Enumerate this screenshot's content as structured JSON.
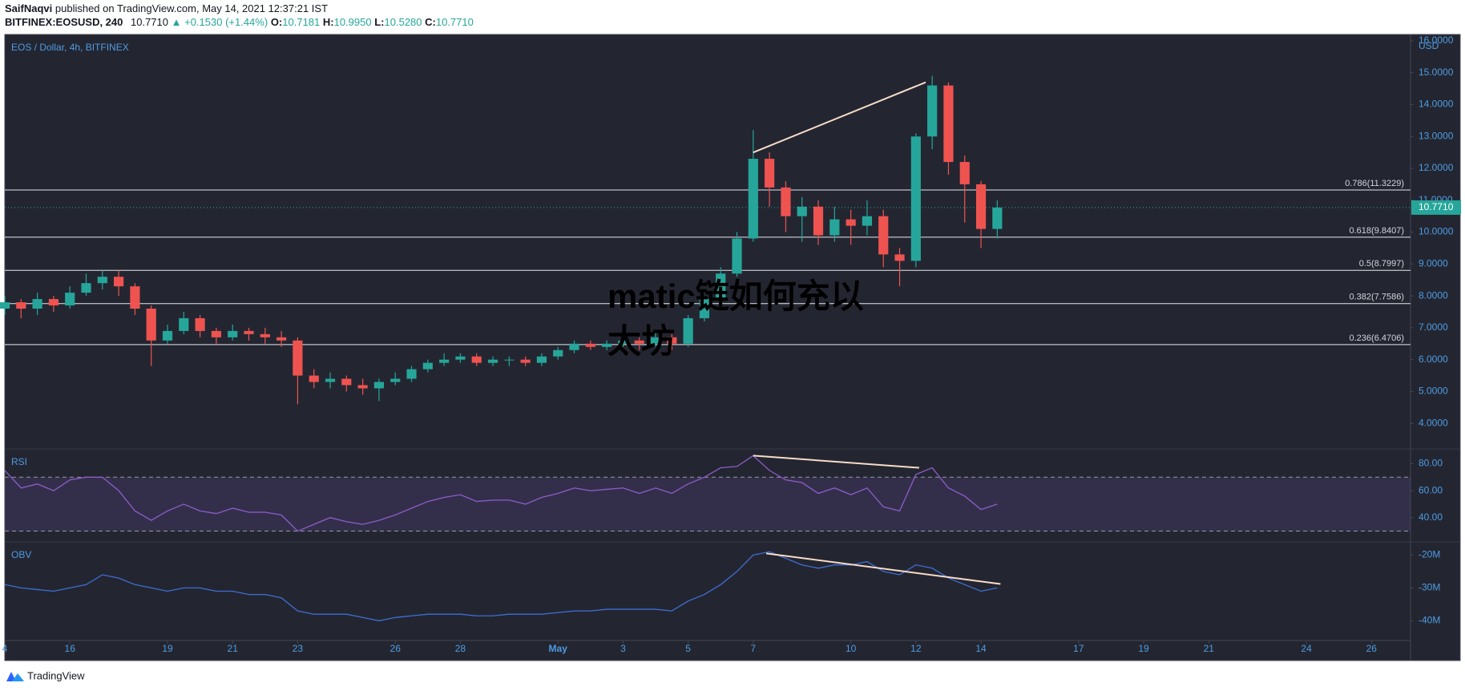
{
  "header": {
    "author": "SaifNaqvi",
    "published": "published on TradingView.com, May 14, 2021 12:37:21 IST",
    "symbol": "BITFINEX:EOSUSD, 240",
    "last": "10.7710",
    "change": "▲ +0.1530 (+1.44%)",
    "ohlc": [
      {
        "label": "O:",
        "value": "10.7181"
      },
      {
        "label": "H:",
        "value": "10.9950"
      },
      {
        "label": "L:",
        "value": "10.5280"
      },
      {
        "label": "C:",
        "value": "10.7710"
      }
    ]
  },
  "watermark": [
    "matic链如何充以",
    "太坊"
  ],
  "footer": "TradingView",
  "chart_data": [
    {
      "type": "candlestick",
      "title": "EOS / Dollar, 4h, BITFINEX",
      "currency": "USD",
      "up_color": "#26a69a",
      "down_color": "#ef5350",
      "x": [
        0,
        0.5,
        1,
        1.5,
        2,
        2.5,
        3,
        3.5,
        4,
        4.5,
        5,
        5.5,
        6,
        6.5,
        7,
        7.5,
        8,
        8.5,
        9,
        9.5,
        10,
        10.5,
        11,
        11.5,
        12,
        12.5,
        13,
        13.5,
        14,
        14.5,
        15,
        15.5,
        16,
        16.5,
        17,
        17.5,
        18,
        18.5,
        19,
        19.5,
        20,
        20.5,
        21,
        21.5,
        22,
        22.5,
        23,
        23.5,
        24,
        24.5,
        25,
        25.5,
        26,
        26.5,
        27,
        27.5,
        28,
        28.5,
        29,
        29.5,
        30,
        30.5
      ],
      "open": [
        7.6,
        7.8,
        7.6,
        7.9,
        7.7,
        8.1,
        8.4,
        8.6,
        8.3,
        7.6,
        6.6,
        6.9,
        7.3,
        6.9,
        6.7,
        6.9,
        6.8,
        6.7,
        6.6,
        5.5,
        5.3,
        5.4,
        5.2,
        5.1,
        5.3,
        5.4,
        5.7,
        5.9,
        6.0,
        6.1,
        5.9,
        6.0,
        6.0,
        5.9,
        6.1,
        6.3,
        6.5,
        6.4,
        6.5,
        6.6,
        6.5,
        6.7,
        6.5,
        7.3,
        7.9,
        8.7,
        9.8,
        12.3,
        11.4,
        10.5,
        10.8,
        9.9,
        10.4,
        10.2,
        10.5,
        9.3,
        9.1,
        13.0,
        14.6,
        12.2,
        11.5,
        10.1
      ],
      "high": [
        8.0,
        7.9,
        8.1,
        8.0,
        8.3,
        8.7,
        8.8,
        8.8,
        8.4,
        7.7,
        7.1,
        7.5,
        7.4,
        7.0,
        7.1,
        7.0,
        7.0,
        6.9,
        6.7,
        5.7,
        5.6,
        5.5,
        5.4,
        5.4,
        5.6,
        5.8,
        6.0,
        6.2,
        6.2,
        6.2,
        6.1,
        6.1,
        6.1,
        6.2,
        6.4,
        6.6,
        6.6,
        6.6,
        6.7,
        6.7,
        6.9,
        6.8,
        7.4,
        8.0,
        8.9,
        10.0,
        13.2,
        12.5,
        11.6,
        11.1,
        11.0,
        10.8,
        10.7,
        11.0,
        10.7,
        9.5,
        13.1,
        14.9,
        14.7,
        12.4,
        11.6,
        11.0
      ],
      "low": [
        7.4,
        7.3,
        7.4,
        7.5,
        7.6,
        8.0,
        8.2,
        8.0,
        7.4,
        5.8,
        6.5,
        6.8,
        6.7,
        6.5,
        6.6,
        6.6,
        6.5,
        6.4,
        4.6,
        5.1,
        5.1,
        5.0,
        4.9,
        4.7,
        5.2,
        5.3,
        5.6,
        5.8,
        5.9,
        5.8,
        5.8,
        5.8,
        5.8,
        5.8,
        6.0,
        6.2,
        6.3,
        6.3,
        6.4,
        6.3,
        6.4,
        6.3,
        6.4,
        7.2,
        7.8,
        8.6,
        9.7,
        10.8,
        10.0,
        9.7,
        9.6,
        9.7,
        9.6,
        9.9,
        8.9,
        8.3,
        8.9,
        12.6,
        11.8,
        10.3,
        9.5,
        9.8
      ],
      "close": [
        7.8,
        7.6,
        7.9,
        7.7,
        8.1,
        8.4,
        8.6,
        8.3,
        7.6,
        6.6,
        6.9,
        7.3,
        6.9,
        6.7,
        6.9,
        6.8,
        6.7,
        6.6,
        5.5,
        5.3,
        5.4,
        5.2,
        5.1,
        5.3,
        5.4,
        5.7,
        5.9,
        6.0,
        6.1,
        5.9,
        6.0,
        6.0,
        5.9,
        6.1,
        6.3,
        6.5,
        6.4,
        6.5,
        6.6,
        6.5,
        6.7,
        6.5,
        7.3,
        7.9,
        8.7,
        9.8,
        12.3,
        11.4,
        10.5,
        10.8,
        9.9,
        10.4,
        10.2,
        10.5,
        9.3,
        9.1,
        13.0,
        14.6,
        12.2,
        11.5,
        10.1,
        10.771
      ],
      "xlim": [
        0,
        43.2
      ],
      "xticks": [
        {
          "value": 0,
          "label": "4"
        },
        {
          "value": 2,
          "label": "16"
        },
        {
          "value": 5,
          "label": "19"
        },
        {
          "value": 7,
          "label": "21"
        },
        {
          "value": 9,
          "label": "23"
        },
        {
          "value": 12,
          "label": "26"
        },
        {
          "value": 14,
          "label": "28"
        },
        {
          "value": 17,
          "label": "May"
        },
        {
          "value": 19,
          "label": "3"
        },
        {
          "value": 21,
          "label": "5"
        },
        {
          "value": 23,
          "label": "7"
        },
        {
          "value": 26,
          "label": "10"
        },
        {
          "value": 28,
          "label": "12"
        },
        {
          "value": 30,
          "label": "14"
        },
        {
          "value": 33,
          "label": "17"
        },
        {
          "value": 35,
          "label": "19"
        },
        {
          "value": 37,
          "label": "21"
        },
        {
          "value": 40,
          "label": "24"
        },
        {
          "value": 42,
          "label": "26"
        }
      ],
      "ylim": [
        3.2,
        16.2
      ],
      "yticks": [
        {
          "value": 4,
          "label": "4.0000"
        },
        {
          "value": 5,
          "label": "5.0000"
        },
        {
          "value": 6,
          "label": "6.0000"
        },
        {
          "value": 7,
          "label": "7.0000"
        },
        {
          "value": 8,
          "label": "8.0000"
        },
        {
          "value": 9,
          "label": "9.0000"
        },
        {
          "value": 10,
          "label": "10.0000"
        },
        {
          "value": 11,
          "label": "11.0000"
        },
        {
          "value": 12,
          "label": "12.0000"
        },
        {
          "value": 13,
          "label": "13.0000"
        },
        {
          "value": 14,
          "label": "14.0000"
        },
        {
          "value": 15,
          "label": "15.0000"
        },
        {
          "value": 16,
          "label": "16.0000"
        }
      ],
      "fib_levels": [
        {
          "value": 11.3229,
          "label": "0.786(11.3229)"
        },
        {
          "value": 9.8407,
          "label": "0.618(9.8407)"
        },
        {
          "value": 8.7997,
          "label": "0.5(8.7997)"
        },
        {
          "value": 7.7586,
          "label": "0.382(7.7586)"
        },
        {
          "value": 6.4706,
          "label": "0.236(6.4706)"
        }
      ],
      "last_price": {
        "value": 10.771,
        "label": "10.7710"
      },
      "trendline": {
        "x": [
          23,
          28.3
        ],
        "y": [
          12.5,
          14.7
        ]
      }
    },
    {
      "type": "line",
      "title": "RSI",
      "color": "#8e5cc9",
      "band_color": "#7e57c2",
      "x": [
        0,
        0.5,
        1,
        1.5,
        2,
        2.5,
        3,
        3.5,
        4,
        4.5,
        5,
        5.5,
        6,
        6.5,
        7,
        7.5,
        8,
        8.5,
        9,
        9.5,
        10,
        10.5,
        11,
        11.5,
        12,
        12.5,
        13,
        13.5,
        14,
        14.5,
        15,
        15.5,
        16,
        16.5,
        17,
        17.5,
        18,
        18.5,
        19,
        19.5,
        20,
        20.5,
        21,
        21.5,
        22,
        22.5,
        23,
        23.5,
        24,
        24.5,
        25,
        25.5,
        26,
        26.5,
        27,
        27.5,
        28,
        28.5,
        29,
        29.5,
        30,
        30.5
      ],
      "values": [
        75,
        62,
        65,
        60,
        68,
        70,
        70,
        60,
        45,
        38,
        45,
        50,
        45,
        43,
        47,
        44,
        44,
        42,
        30,
        35,
        40,
        37,
        35,
        38,
        42,
        47,
        52,
        55,
        57,
        52,
        53,
        53,
        50,
        55,
        58,
        62,
        60,
        61,
        62,
        58,
        62,
        58,
        65,
        70,
        77,
        78,
        86,
        75,
        68,
        66,
        58,
        62,
        57,
        62,
        48,
        45,
        72,
        77,
        62,
        56,
        46,
        50
      ],
      "xlim": [
        0,
        43.2
      ],
      "ylim": [
        22,
        91
      ],
      "yticks": [
        {
          "value": 40,
          "label": "40.00"
        },
        {
          "value": 60,
          "label": "60.00"
        },
        {
          "value": 80,
          "label": "80.00"
        }
      ],
      "bands": [
        30,
        70
      ],
      "trendline": {
        "x": [
          23,
          28.1
        ],
        "y": [
          86,
          77
        ]
      }
    },
    {
      "type": "line",
      "title": "OBV",
      "color": "#3f6ed3",
      "x": [
        0,
        0.5,
        1,
        1.5,
        2,
        2.5,
        3,
        3.5,
        4,
        4.5,
        5,
        5.5,
        6,
        6.5,
        7,
        7.5,
        8,
        8.5,
        9,
        9.5,
        10,
        10.5,
        11,
        11.5,
        12,
        12.5,
        13,
        13.5,
        14,
        14.5,
        15,
        15.5,
        16,
        16.5,
        17,
        17.5,
        18,
        18.5,
        19,
        19.5,
        20,
        20.5,
        21,
        21.5,
        22,
        22.5,
        23,
        23.5,
        24,
        24.5,
        25,
        25.5,
        26,
        26.5,
        27,
        27.5,
        28,
        28.5,
        29,
        29.5,
        30,
        30.5
      ],
      "values": [
        -29,
        -30,
        -30.5,
        -31,
        -30,
        -29,
        -26,
        -27,
        -29,
        -30,
        -31,
        -30,
        -30,
        -31,
        -31,
        -32,
        -32,
        -33,
        -37,
        -38,
        -38,
        -38,
        -39,
        -40,
        -39,
        -38.5,
        -38,
        -38,
        -38,
        -38.5,
        -38.5,
        -38,
        -38,
        -38,
        -37.5,
        -37,
        -37,
        -36.5,
        -36.5,
        -36.5,
        -36.5,
        -37,
        -34,
        -32,
        -29,
        -25,
        -20,
        -19,
        -21,
        -23,
        -24,
        -23,
        -23,
        -22,
        -25,
        -26,
        -23,
        -24,
        -27,
        -29,
        -31,
        -30
      ],
      "xlim": [
        0,
        43.2
      ],
      "ylim": [
        -46,
        -16
      ],
      "yticks": [
        {
          "value": -40,
          "label": "-40M"
        },
        {
          "value": -30,
          "label": "-30M"
        },
        {
          "value": -20,
          "label": "-20M"
        }
      ],
      "trendline": {
        "x": [
          23.4,
          30.6
        ],
        "y": [
          -19.5,
          -28.8
        ]
      }
    }
  ]
}
